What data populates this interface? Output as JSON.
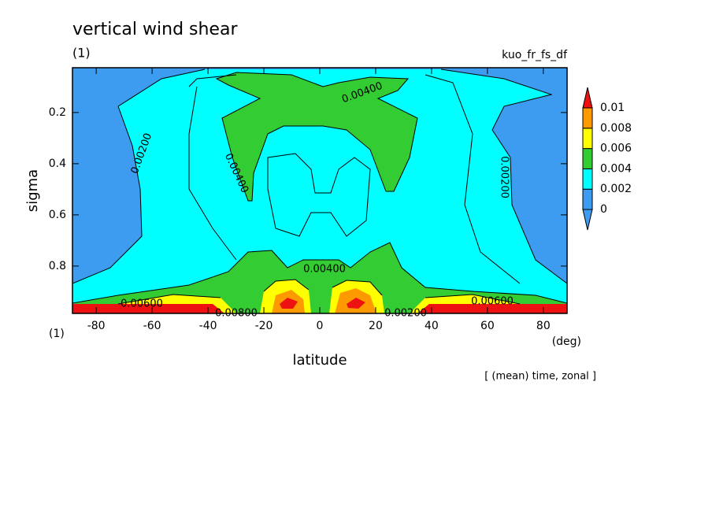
{
  "chart_data": {
    "type": "contour",
    "title": "vertical wind shear",
    "subtitle": "(1)",
    "run_label": "kuo_fr_fs_df",
    "x_label": "latitude",
    "x_unit": "(deg)",
    "y_label": "sigma",
    "y_unit": "(1)",
    "note": "[ (mean) time, zonal ]",
    "xlim": [
      -88.5,
      88.5
    ],
    "xticks": [
      -80,
      -60,
      -40,
      -20,
      0,
      20,
      40,
      60,
      80
    ],
    "ylim": [
      0.025,
      0.985
    ],
    "yticks": [
      0.2,
      0.4,
      0.6,
      0.8
    ],
    "y_inverted": true,
    "levels": [
      0,
      0.002,
      0.004,
      0.006,
      0.008,
      0.01
    ],
    "level_colors": [
      "#3d9cf0",
      "#3d9cf0",
      "#00ffff",
      "#33cc33",
      "#ffff00",
      "#ff9900",
      "#ee1111"
    ],
    "contour_labels": [
      {
        "value": 0.004,
        "label": "0.00400"
      },
      {
        "value": 0.002,
        "label": "0.00200"
      },
      {
        "value": 0.004,
        "label": "0.00400"
      },
      {
        "value": 0.002,
        "label": "0.00200"
      },
      {
        "value": 0.004,
        "label": "0.00400"
      },
      {
        "value": 0.006,
        "label": "0.00600"
      },
      {
        "value": 0.006,
        "label": "0.00600"
      },
      {
        "value": 0.008,
        "label": "0.00800"
      },
      {
        "value": 0.002,
        "label": "0.00200"
      }
    ]
  }
}
